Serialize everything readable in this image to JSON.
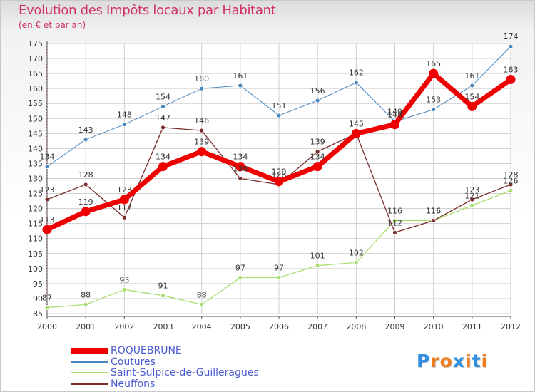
{
  "title": "Evolution des Impôts locaux par Habitant",
  "subtitle": "(en € et par an)",
  "logo": {
    "letters": [
      "P",
      "r",
      "o",
      "x",
      "i",
      "t",
      "i"
    ],
    "colors": [
      "#2f8ee0",
      "#f07d1c",
      "#f07d1c",
      "#2f8ee0",
      "#f07d1c",
      "#2f8ee0",
      "#f07d1c"
    ]
  },
  "chart_data": {
    "type": "line",
    "title": "Evolution des Impôts locaux par Habitant",
    "subtitle": "(en € et par an)",
    "xlabel": "",
    "ylabel": "",
    "x": [
      "2000",
      "2001",
      "2002",
      "2003",
      "2004",
      "2005",
      "2006",
      "2007",
      "2008",
      "2009",
      "2010",
      "2011",
      "2012"
    ],
    "ylim": [
      85,
      175
    ],
    "yticks": [
      85,
      90,
      95,
      100,
      105,
      110,
      115,
      120,
      125,
      130,
      135,
      140,
      145,
      150,
      155,
      160,
      165,
      170,
      175
    ],
    "grid": true,
    "legend_position": "bottom-left",
    "series": [
      {
        "name": "Coutures",
        "color": "#4a87c0",
        "values": [
          134,
          143,
          148,
          154,
          160,
          161,
          151,
          156,
          162,
          149,
          153,
          161,
          174
        ]
      },
      {
        "name": "Saint-Sulpice-de-Guilleragues",
        "color": "#a8de70",
        "values": [
          87,
          88,
          93,
          91,
          88,
          97,
          97,
          101,
          102,
          116,
          116,
          121,
          126
        ]
      },
      {
        "name": "Neuffons",
        "color": "#7a2b2b",
        "values": [
          123,
          128,
          117,
          147,
          146,
          130,
          128,
          139,
          145,
          112,
          116,
          123,
          128
        ]
      },
      {
        "name": "ROQUEBRUNE",
        "color": "#ee0000",
        "values": [
          113,
          119,
          123,
          134,
          139,
          134,
          129,
          134,
          145,
          148,
          165,
          154,
          163
        ]
      }
    ],
    "legend_order": [
      "ROQUEBRUNE",
      "Coutures",
      "Saint-Sulpice-de-Guilleragues",
      "Neuffons"
    ]
  }
}
